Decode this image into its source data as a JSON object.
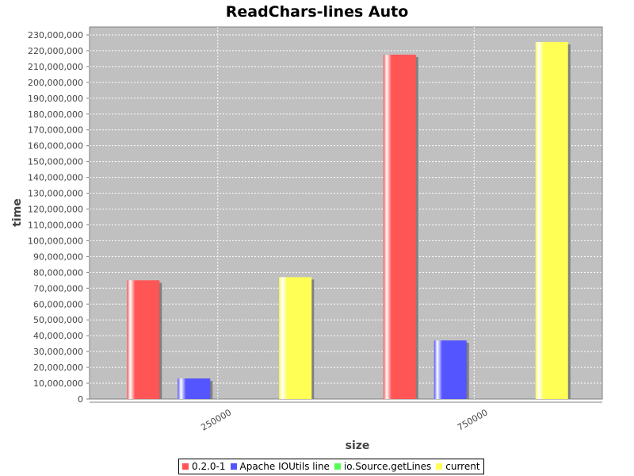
{
  "chart_data": {
    "type": "bar",
    "title": "ReadChars-lines Auto",
    "xlabel": "size",
    "ylabel": "time",
    "categories": [
      "250000",
      "750000"
    ],
    "series": [
      {
        "name": "0.2.0-1",
        "color": "#ff5555",
        "values": [
          75000000,
          217500000
        ]
      },
      {
        "name": "Apache IOUtils line",
        "color": "#5555ff",
        "values": [
          13000000,
          37000000
        ]
      },
      {
        "name": "io.Source.getLines",
        "color": "#55ff55",
        "values": [
          0,
          0
        ]
      },
      {
        "name": "current",
        "color": "#ffff55",
        "values": [
          77000000,
          225500000
        ]
      }
    ],
    "ylim": [
      0,
      235000000
    ],
    "yticks": [
      0,
      10000000,
      20000000,
      30000000,
      40000000,
      50000000,
      60000000,
      70000000,
      80000000,
      90000000,
      100000000,
      110000000,
      120000000,
      130000000,
      140000000,
      150000000,
      160000000,
      170000000,
      180000000,
      190000000,
      200000000,
      210000000,
      220000000,
      230000000
    ],
    "grid": true,
    "legend_position": "bottom",
    "plot_background": "#c0c0c0"
  }
}
